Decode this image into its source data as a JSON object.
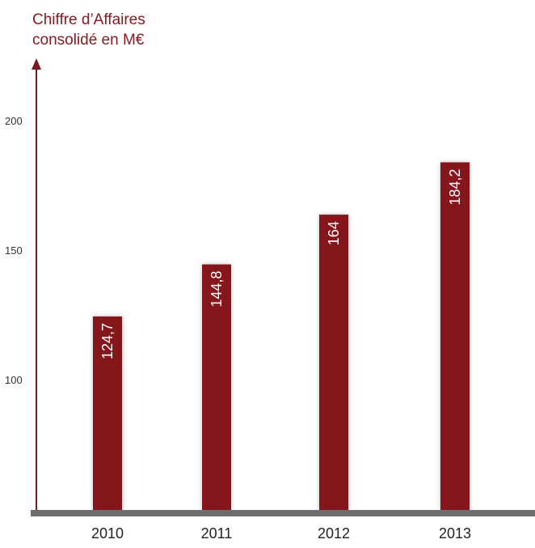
{
  "chart_data": {
    "type": "bar",
    "title_lines": [
      "Chiffre d’Affaires",
      "consolidé en M€"
    ],
    "categories": [
      "2010",
      "2011",
      "2012",
      "2013"
    ],
    "values": [
      124.7,
      144.8,
      164,
      184.2
    ],
    "value_labels": [
      "124,7",
      "144,8",
      "164",
      "184,2"
    ],
    "yticks": [
      100,
      150,
      200
    ],
    "ylim": [
      50,
      200
    ],
    "grid": "dashed horizontal",
    "colors": {
      "bar": "#85141b",
      "title": "#8b1a22",
      "axis": "#7a1a20",
      "baseline": "#6e6e6e",
      "grid": "#c99aa0"
    }
  }
}
